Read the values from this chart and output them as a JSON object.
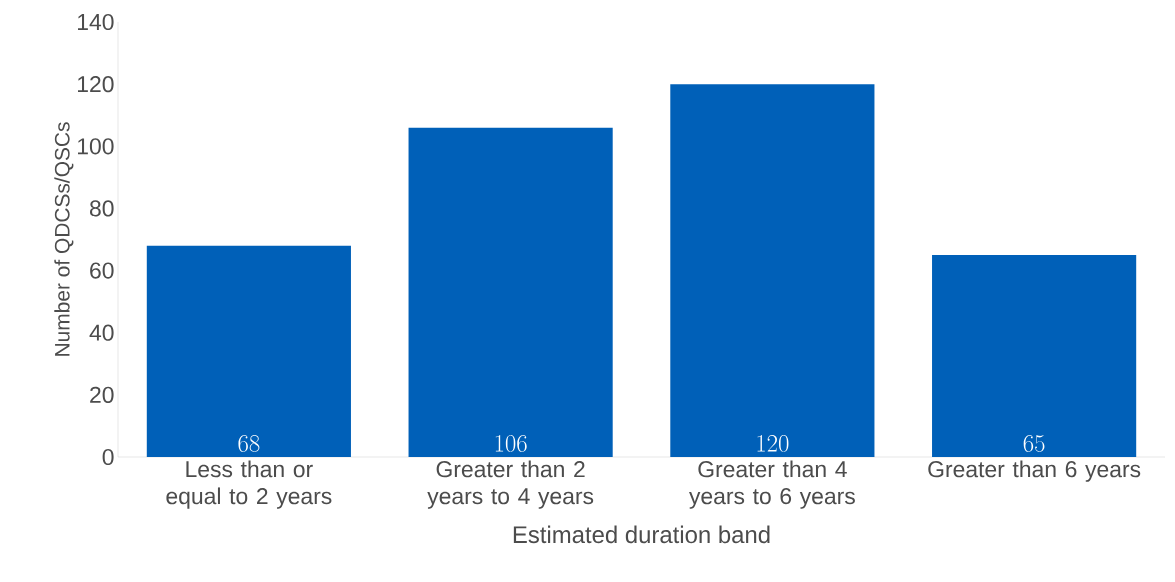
{
  "chart_data": {
    "type": "bar",
    "xlabel": "Estimated duration band",
    "ylabel": "Number of QDCSs/QSCs",
    "categories": [
      "Less than or equal to 2 years",
      "Greater than 2 years to 4 years",
      "Greater than 4 years to 6 years",
      "Greater than 6 years"
    ],
    "values": [
      68,
      106,
      120,
      65
    ],
    "color": "#0060b8",
    "ylim": [
      0,
      140
    ],
    "yticks": [
      0,
      20,
      40,
      60,
      80,
      100,
      120,
      140
    ],
    "grid": false,
    "data_labels": true
  }
}
